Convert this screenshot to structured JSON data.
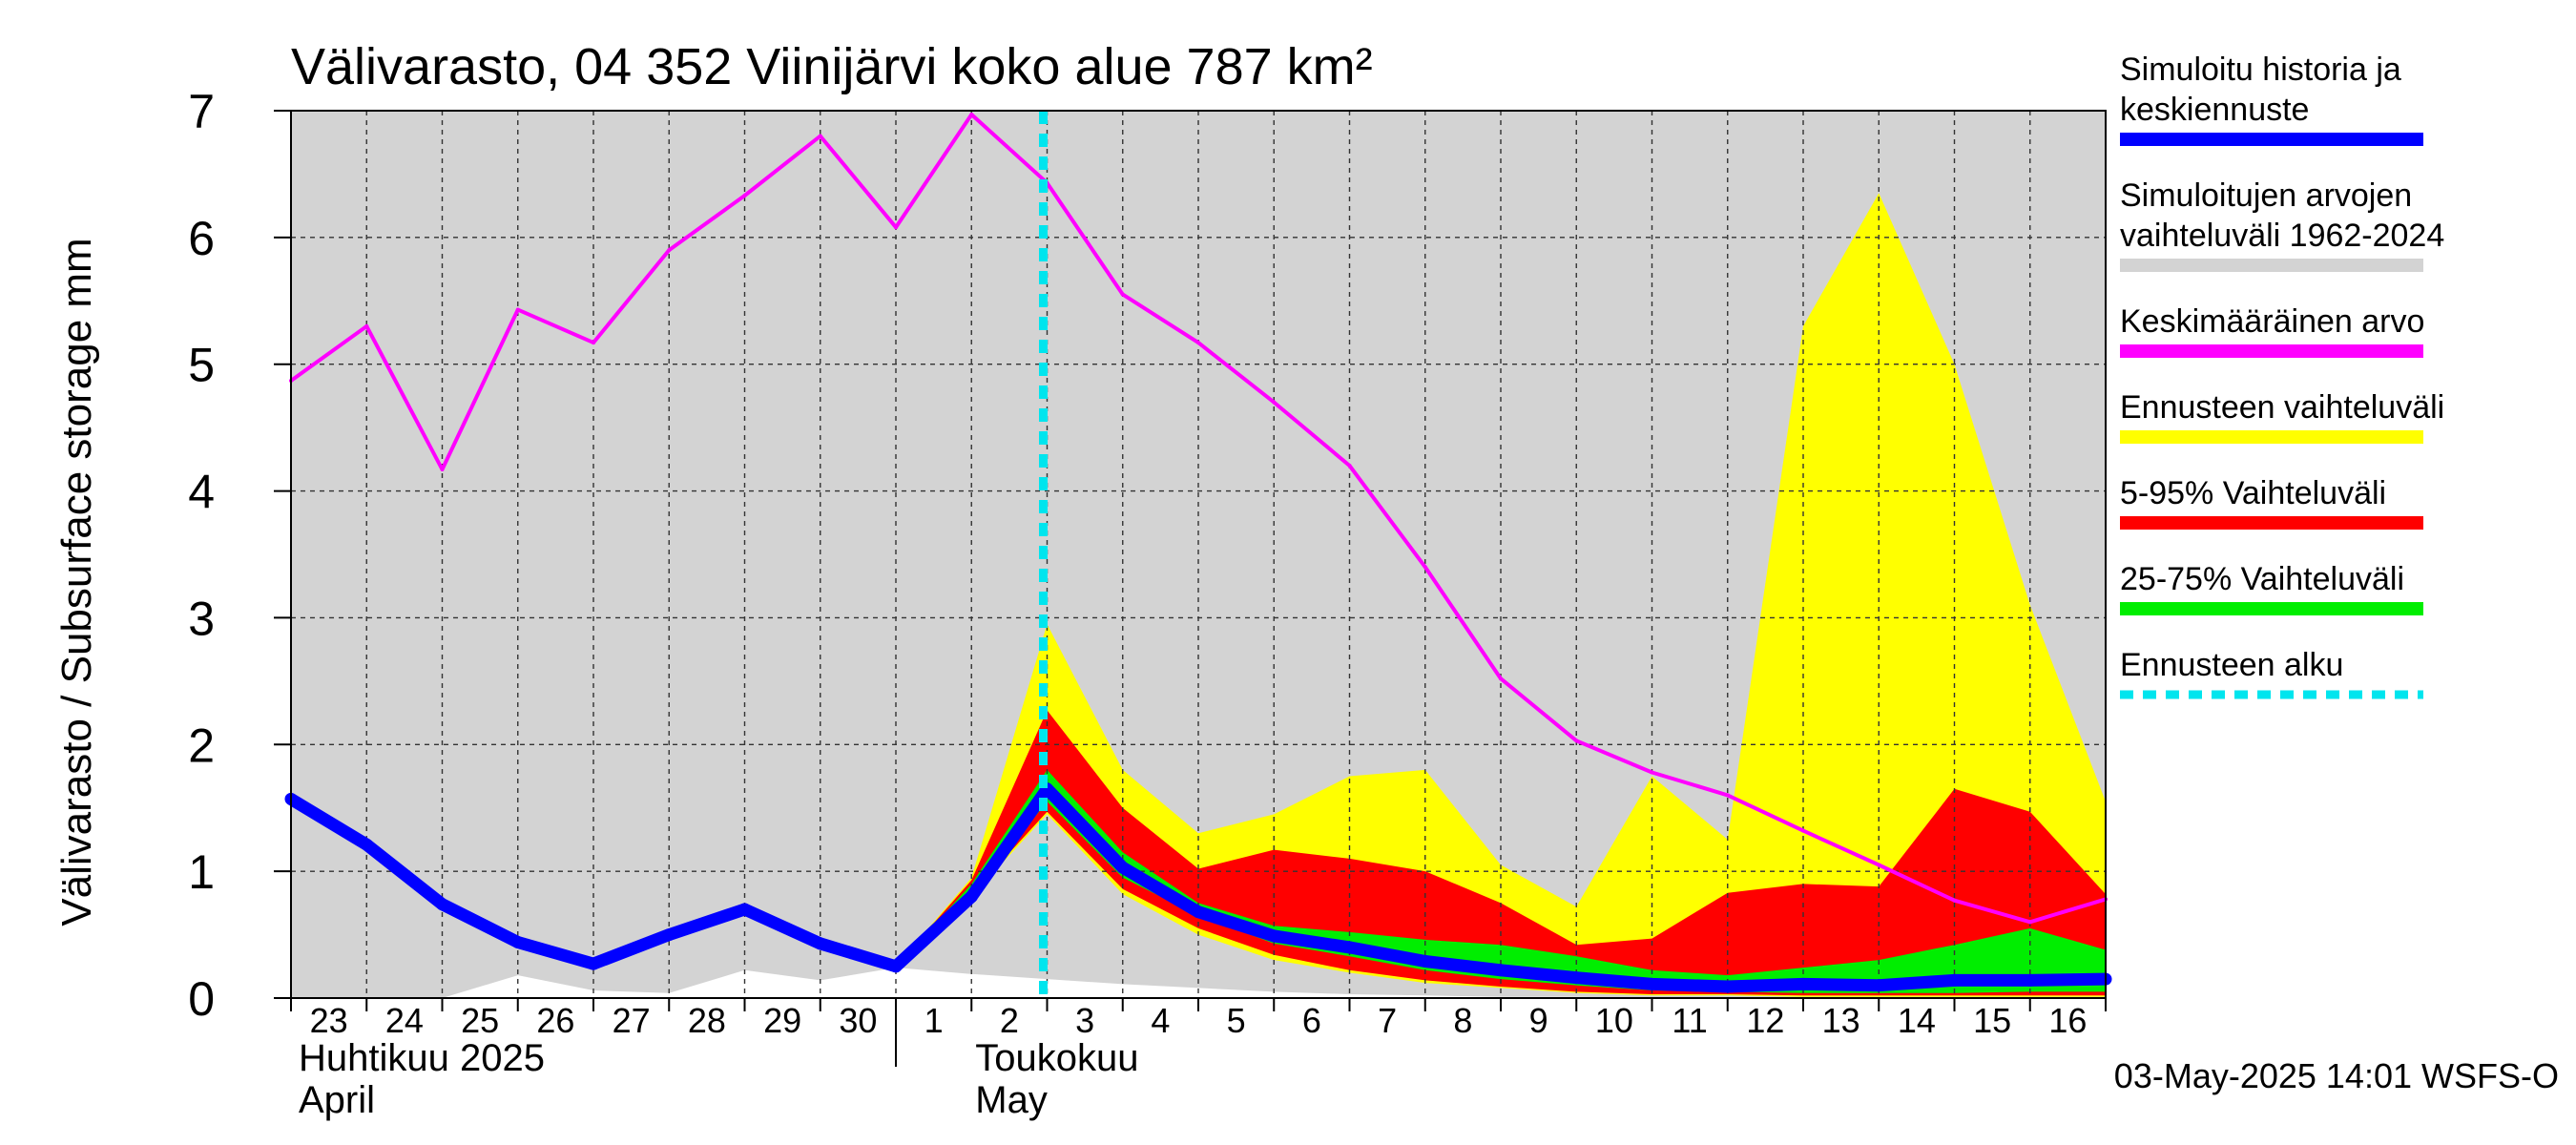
{
  "chart_data": {
    "type": "area",
    "title": "Välivarasto, 04 352 Viinijärvi koko alue 787 km²",
    "ylabel": "Välivarasto / Subsurface storage  mm",
    "ylim": [
      0,
      7
    ],
    "yticks": [
      "0",
      "1",
      "2",
      "3",
      "4",
      "5",
      "6",
      "7"
    ],
    "x": [
      "23",
      "24",
      "25",
      "26",
      "27",
      "28",
      "29",
      "30",
      "1",
      "2",
      "3",
      "4",
      "5",
      "6",
      "7",
      "8",
      "9",
      "10",
      "11",
      "12",
      "13",
      "14",
      "15",
      "16",
      "17"
    ],
    "x_tick_labels": [
      "23",
      "24",
      "25",
      "26",
      "27",
      "28",
      "29",
      "30",
      "1",
      "2",
      "3",
      "4",
      "5",
      "6",
      "7",
      "8",
      "9",
      "10",
      "11",
      "12",
      "13",
      "14",
      "15",
      "16"
    ],
    "month_labels": [
      {
        "line1": "Huhtikuu  2025",
        "line2": "April"
      },
      {
        "line1": "Toukokuu",
        "line2": "May"
      }
    ],
    "forecast_start_index": 10,
    "series": [
      {
        "name": "Simuloitujen arvojen vaihteluväli 1962-2024",
        "kind": "band",
        "color": "#d3d3d3",
        "lower": [
          0,
          0,
          0,
          0.18,
          0.06,
          0.04,
          0.22,
          0.14,
          0.24,
          0.19,
          0.15,
          0.11,
          0.08,
          0.05,
          0.03,
          0.02,
          0.01,
          0.01,
          0,
          0,
          0,
          0,
          0,
          0,
          0
        ],
        "upper": [
          7,
          7,
          7,
          7,
          7,
          7,
          7,
          7,
          7,
          7,
          7,
          7,
          7,
          7,
          7,
          7,
          7,
          7,
          7,
          7,
          7,
          7,
          7,
          7,
          7
        ]
      },
      {
        "name": "Ennusteen vaihteluväli",
        "kind": "band",
        "color": "#ffff00",
        "lower": [
          null,
          null,
          null,
          null,
          null,
          null,
          null,
          null,
          0.25,
          0.8,
          1.45,
          0.82,
          0.5,
          0.3,
          0.2,
          0.12,
          0.08,
          0.04,
          0.02,
          0.02,
          0.01,
          0.01,
          0.01,
          0.01,
          0.01
        ],
        "upper": [
          null,
          null,
          null,
          null,
          null,
          null,
          null,
          null,
          0.25,
          0.95,
          2.95,
          1.8,
          1.3,
          1.45,
          1.75,
          1.8,
          1.05,
          0.72,
          1.75,
          1.25,
          5.3,
          6.35,
          5.0,
          3.1,
          1.55
        ]
      },
      {
        "name": "5-95% Vaihteluväli",
        "kind": "band",
        "color": "#ff0000",
        "lower": [
          null,
          null,
          null,
          null,
          null,
          null,
          null,
          null,
          0.25,
          0.82,
          1.47,
          0.86,
          0.55,
          0.34,
          0.22,
          0.14,
          0.09,
          0.05,
          0.03,
          0.03,
          0.02,
          0.02,
          0.02,
          0.02,
          0.02
        ],
        "upper": [
          null,
          null,
          null,
          null,
          null,
          null,
          null,
          null,
          0.25,
          0.93,
          2.27,
          1.5,
          1.02,
          1.17,
          1.1,
          1.0,
          0.75,
          0.42,
          0.47,
          0.83,
          0.9,
          0.88,
          1.65,
          1.47,
          0.82
        ]
      },
      {
        "name": "25-75% Vaihteluväli",
        "kind": "band",
        "color": "#00ee00",
        "lower": [
          null,
          null,
          null,
          null,
          null,
          null,
          null,
          null,
          0.25,
          0.8,
          1.55,
          0.95,
          0.65,
          0.43,
          0.33,
          0.22,
          0.15,
          0.1,
          0.06,
          0.05,
          0.04,
          0.04,
          0.04,
          0.05,
          0.05
        ],
        "upper": [
          null,
          null,
          null,
          null,
          null,
          null,
          null,
          null,
          0.25,
          0.9,
          1.8,
          1.15,
          0.75,
          0.57,
          0.52,
          0.46,
          0.42,
          0.33,
          0.22,
          0.18,
          0.24,
          0.3,
          0.42,
          0.55,
          0.38
        ]
      },
      {
        "name": "Keskimääräinen arvo",
        "kind": "line",
        "color": "#ff00ff",
        "values": [
          4.87,
          5.3,
          4.17,
          5.43,
          5.17,
          5.9,
          6.33,
          6.8,
          6.08,
          6.97,
          6.43,
          5.55,
          5.17,
          4.7,
          4.2,
          3.4,
          2.52,
          2.03,
          1.78,
          1.6,
          1.32,
          1.05,
          0.77,
          0.6,
          0.78
        ]
      },
      {
        "name": "Simuloitu historia ja keskiennuste",
        "kind": "line",
        "color": "#0000ff",
        "values": [
          1.57,
          1.21,
          0.74,
          0.44,
          0.27,
          0.5,
          0.7,
          0.43,
          0.25,
          0.8,
          1.65,
          1.03,
          0.68,
          0.49,
          0.4,
          0.29,
          0.22,
          0.16,
          0.11,
          0.09,
          0.11,
          0.1,
          0.14,
          0.14,
          0.15
        ]
      }
    ],
    "legend": {
      "placement": "right",
      "items": [
        {
          "line1": "Simuloitu historia ja",
          "line2": "keskiennuste",
          "color": "#0000ff",
          "style": "solid"
        },
        {
          "line1": "Simuloitujen arvojen",
          "line2": "vaihteluväli 1962-2024",
          "color": "#d3d3d3",
          "style": "solid"
        },
        {
          "line1": "Keskimääräinen arvo",
          "line2": "",
          "color": "#ff00ff",
          "style": "solid"
        },
        {
          "line1": "Ennusteen vaihteluväli",
          "line2": "",
          "color": "#ffff00",
          "style": "solid"
        },
        {
          "line1": "5-95% Vaihteluväli",
          "line2": "",
          "color": "#ff0000",
          "style": "solid"
        },
        {
          "line1": "25-75% Vaihteluväli",
          "line2": "",
          "color": "#00ee00",
          "style": "solid"
        },
        {
          "line1": "Ennusteen alku",
          "line2": "",
          "color": "#00e5ee",
          "style": "dashed"
        }
      ]
    },
    "footer": "03-May-2025 14:01 WSFS-O"
  }
}
